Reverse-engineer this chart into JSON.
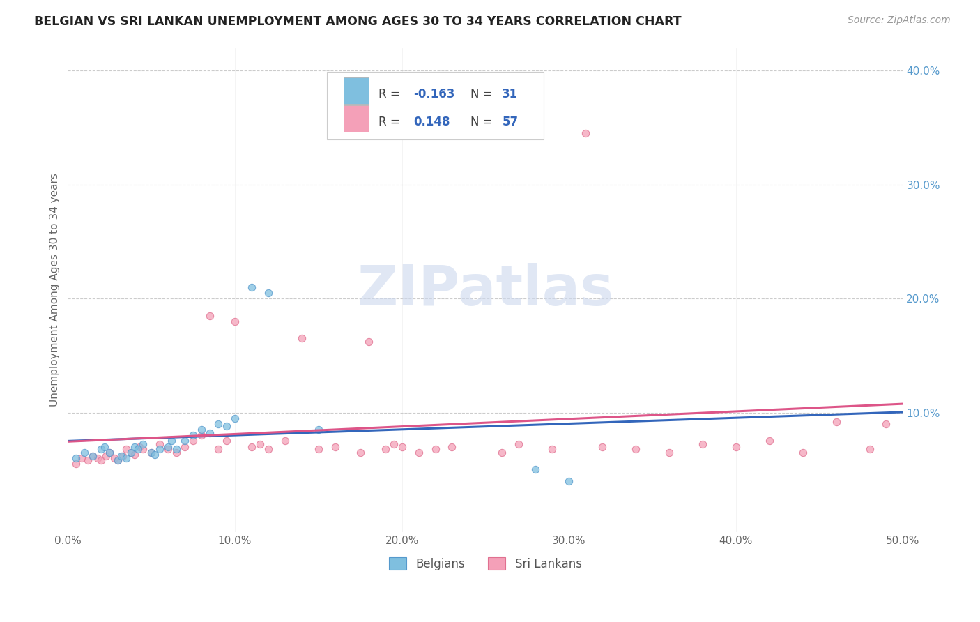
{
  "title": "BELGIAN VS SRI LANKAN UNEMPLOYMENT AMONG AGES 30 TO 34 YEARS CORRELATION CHART",
  "source": "Source: ZipAtlas.com",
  "ylabel": "Unemployment Among Ages 30 to 34 years",
  "xlim": [
    0.0,
    0.5
  ],
  "ylim": [
    -0.005,
    0.42
  ],
  "xticks": [
    0.0,
    0.1,
    0.2,
    0.3,
    0.4,
    0.5
  ],
  "xticklabels": [
    "0.0%",
    "10.0%",
    "20.0%",
    "30.0%",
    "40.0%",
    "50.0%"
  ],
  "yticks_right": [
    0.1,
    0.2,
    0.3,
    0.4
  ],
  "yticklabels_right": [
    "10.0%",
    "20.0%",
    "30.0%",
    "40.0%"
  ],
  "belgian_color": "#7fbfdf",
  "srilankan_color": "#f4a0b8",
  "belgian_edge_color": "#5599cc",
  "srilankan_edge_color": "#e07090",
  "belgian_line_color": "#3366bb",
  "srilankan_line_color": "#dd5588",
  "legend_R_color": "#3366bb",
  "legend_text_color": "#444444",
  "watermark_color": "#ccd8ee",
  "background_color": "#ffffff",
  "grid_color": "#cccccc",
  "ylabel_color": "#666666",
  "xtick_color": "#666666",
  "ytick_right_color": "#5599cc",
  "legend_R_belgian": "-0.163",
  "legend_N_belgian": "31",
  "legend_R_srilankan": "0.148",
  "legend_N_srilankan": "57",
  "watermark": "ZIPatlas",
  "belgian_x": [
    0.005,
    0.01,
    0.015,
    0.02,
    0.022,
    0.025,
    0.03,
    0.032,
    0.035,
    0.038,
    0.04,
    0.042,
    0.045,
    0.05,
    0.052,
    0.055,
    0.06,
    0.062,
    0.065,
    0.07,
    0.075,
    0.08,
    0.085,
    0.09,
    0.095,
    0.1,
    0.11,
    0.12,
    0.15,
    0.28,
    0.3
  ],
  "belgian_y": [
    0.06,
    0.065,
    0.062,
    0.068,
    0.07,
    0.065,
    0.058,
    0.062,
    0.06,
    0.065,
    0.07,
    0.068,
    0.072,
    0.065,
    0.063,
    0.068,
    0.07,
    0.075,
    0.068,
    0.075,
    0.08,
    0.085,
    0.082,
    0.09,
    0.088,
    0.095,
    0.21,
    0.205,
    0.085,
    0.05,
    0.04
  ],
  "srilankan_x": [
    0.005,
    0.008,
    0.012,
    0.015,
    0.018,
    0.02,
    0.023,
    0.025,
    0.028,
    0.03,
    0.033,
    0.035,
    0.038,
    0.04,
    0.043,
    0.045,
    0.05,
    0.055,
    0.06,
    0.065,
    0.07,
    0.075,
    0.08,
    0.085,
    0.09,
    0.095,
    0.1,
    0.11,
    0.115,
    0.12,
    0.13,
    0.14,
    0.15,
    0.16,
    0.175,
    0.18,
    0.19,
    0.195,
    0.2,
    0.21,
    0.22,
    0.23,
    0.24,
    0.26,
    0.27,
    0.29,
    0.31,
    0.32,
    0.34,
    0.36,
    0.38,
    0.4,
    0.42,
    0.44,
    0.46,
    0.48,
    0.49
  ],
  "srilankan_y": [
    0.055,
    0.06,
    0.058,
    0.062,
    0.06,
    0.058,
    0.062,
    0.065,
    0.06,
    0.058,
    0.062,
    0.068,
    0.065,
    0.063,
    0.07,
    0.068,
    0.065,
    0.072,
    0.068,
    0.065,
    0.07,
    0.075,
    0.08,
    0.185,
    0.068,
    0.075,
    0.18,
    0.07,
    0.072,
    0.068,
    0.075,
    0.165,
    0.068,
    0.07,
    0.065,
    0.162,
    0.068,
    0.072,
    0.07,
    0.065,
    0.068,
    0.07,
    0.345,
    0.065,
    0.072,
    0.068,
    0.345,
    0.07,
    0.068,
    0.065,
    0.072,
    0.07,
    0.075,
    0.065,
    0.092,
    0.068,
    0.09
  ]
}
